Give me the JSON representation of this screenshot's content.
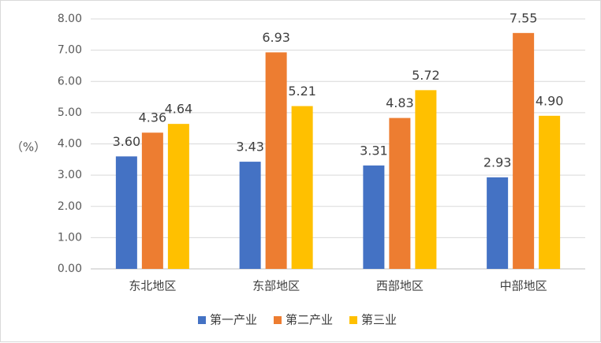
{
  "chart_data": {
    "type": "bar",
    "title": "",
    "xlabel": "",
    "ylabel": "（%）",
    "ylim": [
      0,
      8
    ],
    "yticks": [
      "0.00",
      "1.00",
      "2.00",
      "3.00",
      "4.00",
      "5.00",
      "6.00",
      "7.00",
      "8.00"
    ],
    "categories": [
      "东北地区",
      "东部地区",
      "西部地区",
      "中部地区"
    ],
    "series": [
      {
        "name": "第一产业",
        "color": "#4472c4",
        "values": [
          3.6,
          3.43,
          3.31,
          2.93
        ]
      },
      {
        "name": "第二产业",
        "color": "#ed7d31",
        "values": [
          4.36,
          6.93,
          4.83,
          7.55
        ]
      },
      {
        "name": "第三业",
        "color": "#ffc000",
        "values": [
          4.64,
          5.21,
          5.72,
          4.9
        ]
      }
    ],
    "grid": true,
    "legend_position": "bottom"
  }
}
